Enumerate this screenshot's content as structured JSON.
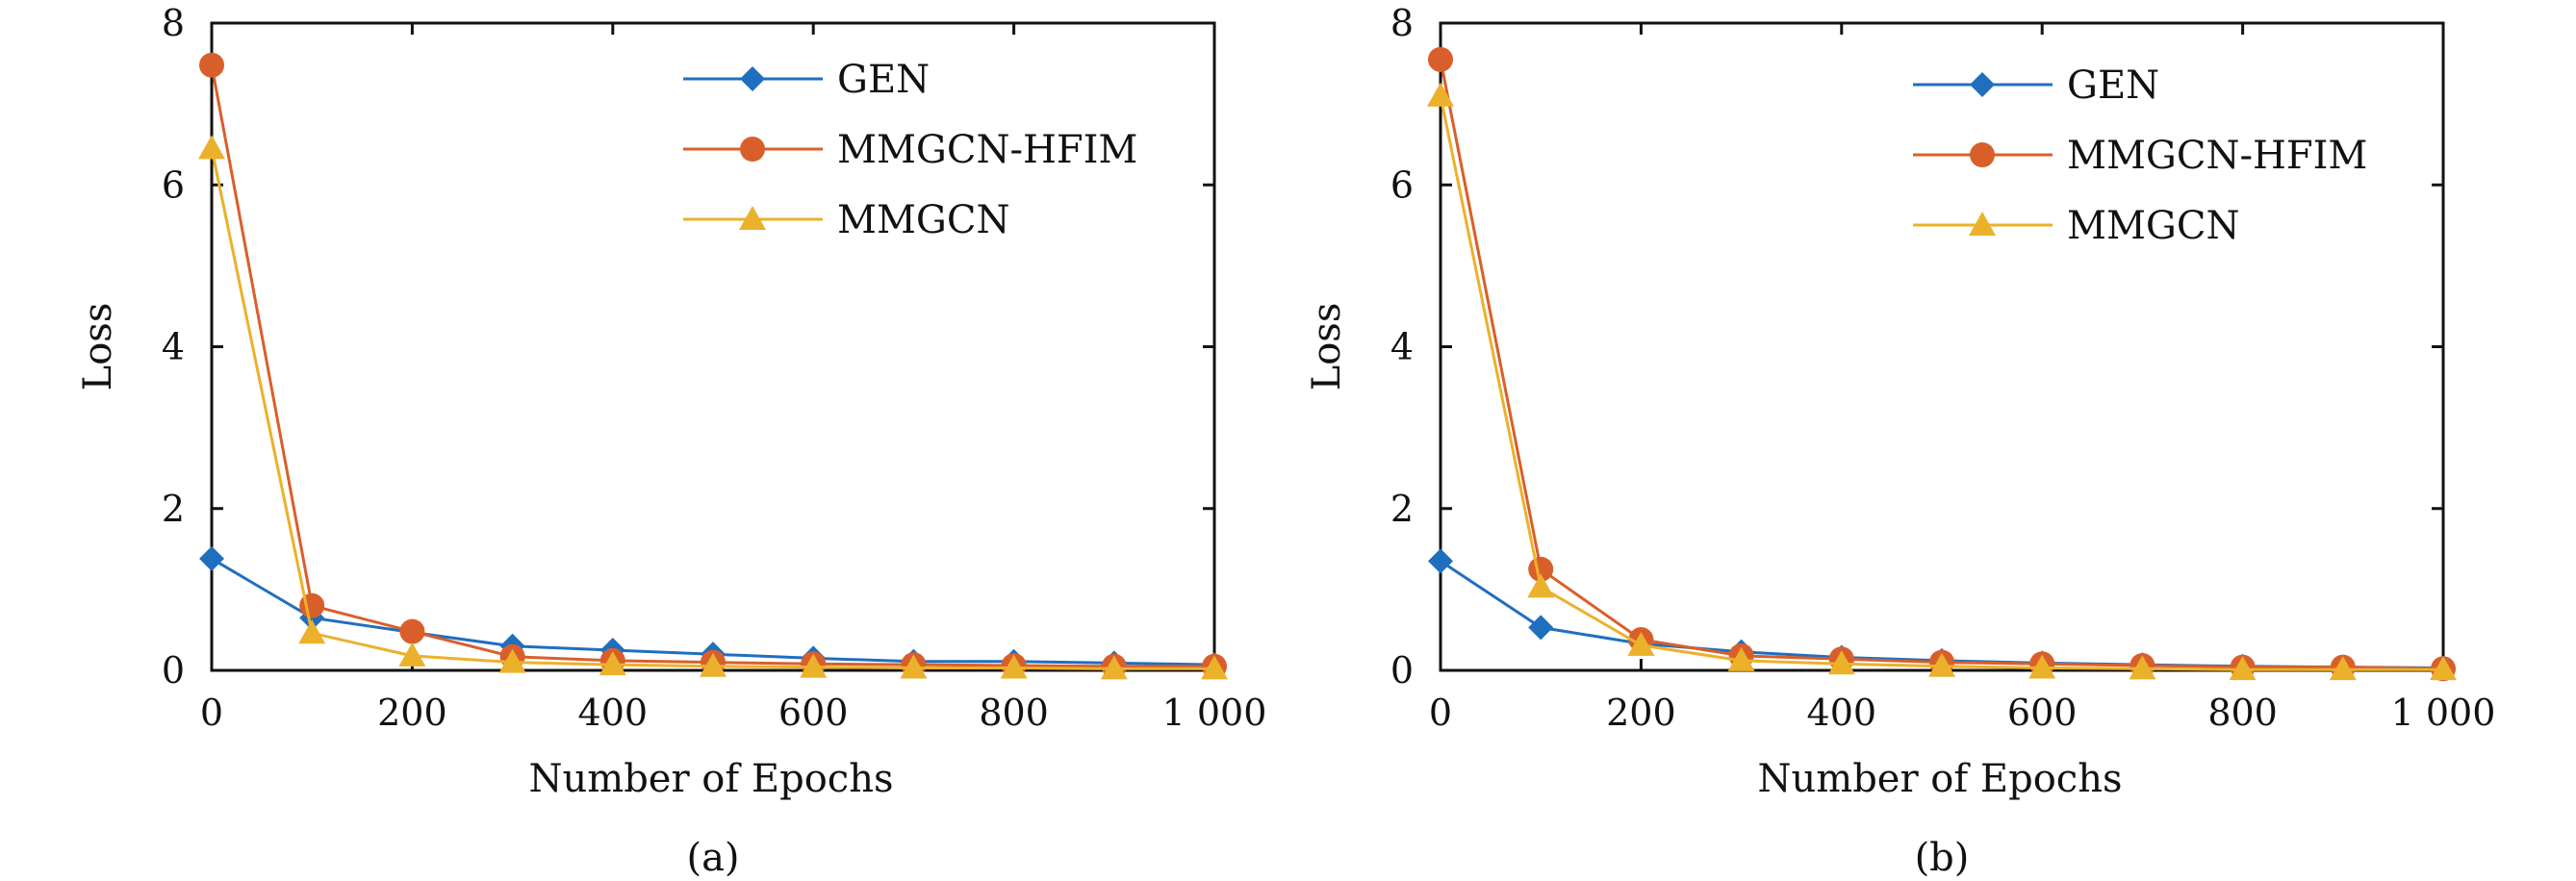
{
  "chart_data": [
    {
      "type": "line",
      "caption": "(a)",
      "xlabel": "Number of Epochs",
      "ylabel": "Loss",
      "xlim": [
        0,
        1000
      ],
      "ylim": [
        0,
        8
      ],
      "x_ticks": [
        "0",
        "200",
        "400",
        "600",
        "800",
        "1 000"
      ],
      "y_ticks": [
        "0",
        "2",
        "4",
        "6",
        "8"
      ],
      "legend_position": "top-right",
      "x": [
        0,
        100,
        200,
        300,
        400,
        500,
        600,
        700,
        800,
        900,
        1000
      ],
      "series": [
        {
          "name": "GEN",
          "color": "#1f6fbf",
          "marker": "diamond",
          "values": [
            1.38,
            0.65,
            0.47,
            0.3,
            0.25,
            0.2,
            0.15,
            0.11,
            0.11,
            0.09,
            0.07
          ]
        },
        {
          "name": "MMGCN-HFIM",
          "color": "#d95f2a",
          "marker": "circle",
          "values": [
            7.48,
            0.8,
            0.48,
            0.17,
            0.12,
            0.1,
            0.08,
            0.07,
            0.06,
            0.05,
            0.05
          ]
        },
        {
          "name": "MMGCN",
          "color": "#ebb12b",
          "marker": "triangle",
          "values": [
            6.45,
            0.46,
            0.18,
            0.1,
            0.07,
            0.05,
            0.04,
            0.03,
            0.03,
            0.02,
            0.02
          ]
        }
      ]
    },
    {
      "type": "line",
      "caption": "(b)",
      "xlabel": "Number of Epochs",
      "ylabel": "Loss",
      "xlim": [
        0,
        1000
      ],
      "ylim": [
        0,
        8
      ],
      "x_ticks": [
        "0",
        "200",
        "400",
        "600",
        "800",
        "1 000"
      ],
      "y_ticks": [
        "0",
        "2",
        "4",
        "6",
        "8"
      ],
      "legend_position": "top-right",
      "x": [
        0,
        100,
        200,
        300,
        400,
        500,
        600,
        700,
        800,
        900,
        1000
      ],
      "series": [
        {
          "name": "GEN",
          "color": "#1f6fbf",
          "marker": "diamond",
          "values": [
            1.35,
            0.53,
            0.33,
            0.23,
            0.16,
            0.12,
            0.09,
            0.07,
            0.05,
            0.04,
            0.03
          ]
        },
        {
          "name": "MMGCN-HFIM",
          "color": "#d95f2a",
          "marker": "circle",
          "values": [
            7.55,
            1.25,
            0.38,
            0.18,
            0.14,
            0.1,
            0.08,
            0.06,
            0.04,
            0.04,
            0.02
          ]
        },
        {
          "name": "MMGCN",
          "color": "#ebb12b",
          "marker": "triangle",
          "values": [
            7.1,
            1.03,
            0.31,
            0.12,
            0.08,
            0.05,
            0.03,
            0.02,
            0.01,
            0.01,
            0.01
          ]
        }
      ]
    }
  ]
}
